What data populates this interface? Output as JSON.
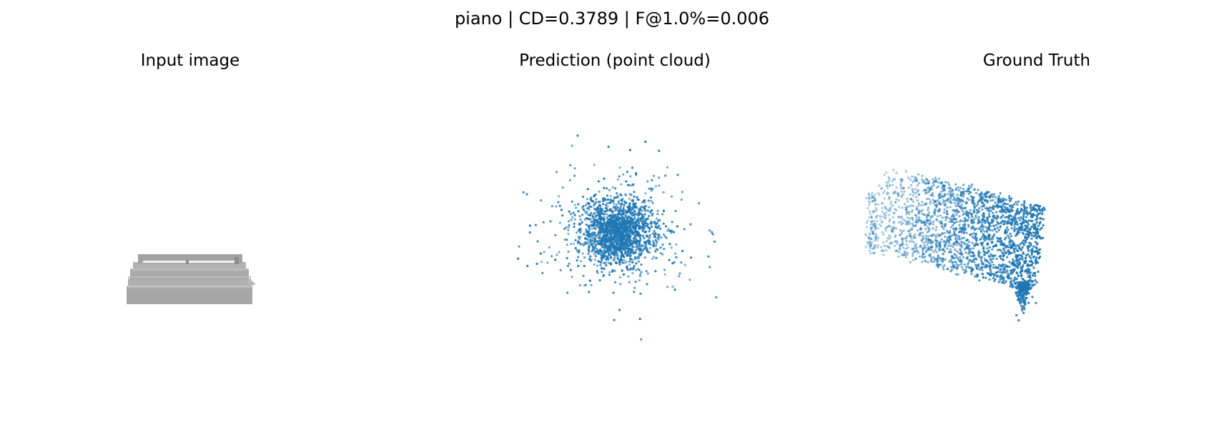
{
  "figure": {
    "suptitle": "piano | CD=0.3789 | F@1.0%=0.006"
  },
  "panels": [
    {
      "title": "Input image",
      "content": "grey-rendered-piano"
    },
    {
      "title": "Prediction (point cloud)",
      "content": "point-cloud-diffuse"
    },
    {
      "title": "Ground Truth",
      "content": "point-cloud-piano"
    }
  ],
  "colors": {
    "point": "#1f77b4",
    "render": "#a6a6a6",
    "render_dark": "#8c8c8c",
    "render_light": "#f2f2f2"
  },
  "prediction_cloud": {
    "distribution": "gaussian-blob",
    "point_count": 1900
  },
  "ground_truth_cloud": {
    "distribution": "slanted-box",
    "point_count": 2100
  }
}
